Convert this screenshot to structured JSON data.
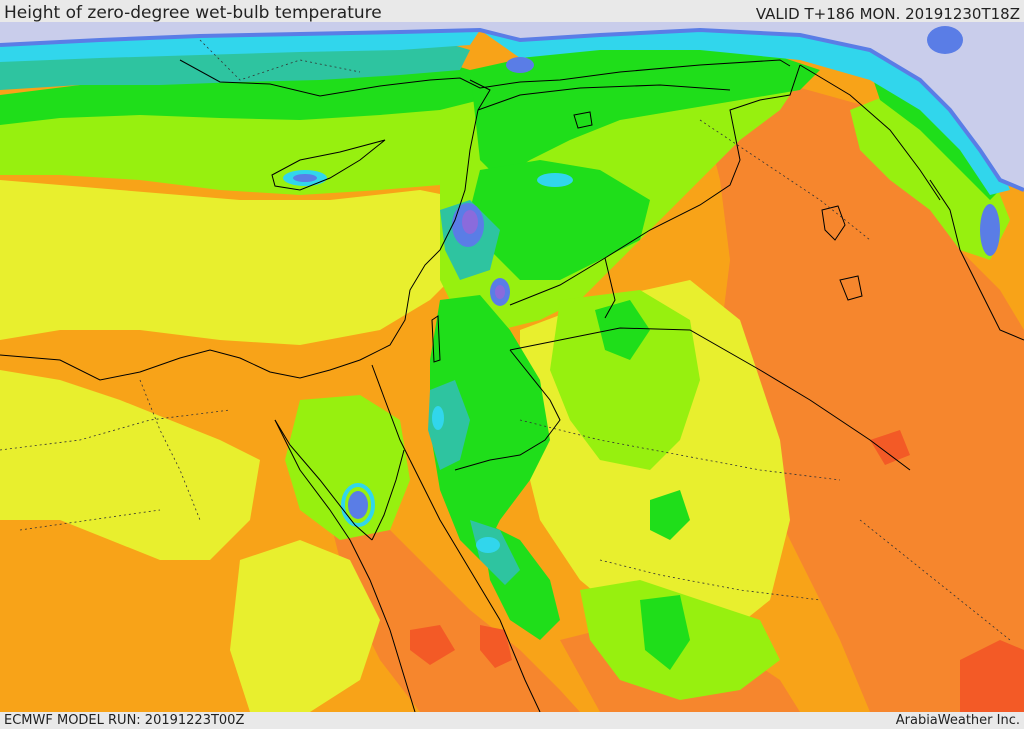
{
  "header": {
    "title": "Height of zero-degree wet-bulb temperature",
    "valid": "VALID T+186 MON. 20191230T18Z"
  },
  "footer": {
    "model_run": "ECMWF MODEL RUN: 20191223T00Z",
    "credit": "ArabiaWeather Inc."
  },
  "palette": {
    "sea": "#c9cdeb",
    "orange": "#f8a318",
    "dark_orange": "#f6862d",
    "red_orange": "#f35a26",
    "yellow": "#e8ef2e",
    "lime": "#97f00f",
    "green": "#1fde1a",
    "teal": "#2ec4a0",
    "cyan": "#31d6ec",
    "blue": "#5a7de6",
    "violet": "#8a6bdc",
    "border": "#000000"
  }
}
